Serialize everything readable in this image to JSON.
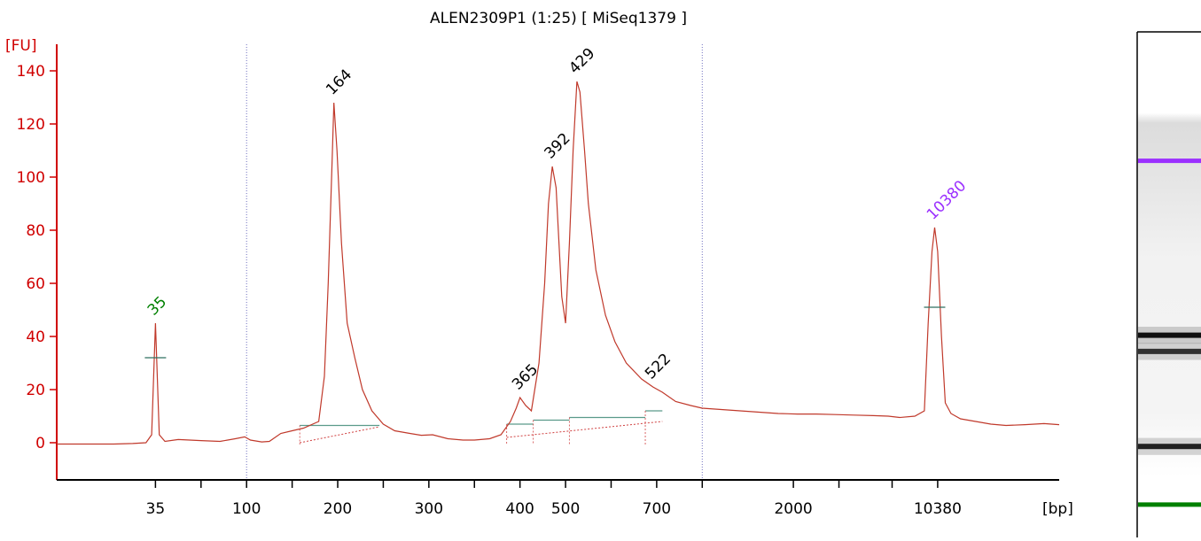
{
  "chart_data": {
    "type": "line",
    "title": "ALEN2309P1 (1:25)  [ MiSeq1379 ]",
    "ylabel": "[FU]",
    "xlabel": "[bp]",
    "ylim": [
      -14,
      150
    ],
    "yticks": [
      0,
      20,
      40,
      60,
      80,
      100,
      120,
      140
    ],
    "xticks": [
      {
        "label": "35",
        "pos": 2.6
      },
      {
        "label": "",
        "pos": 3.8
      },
      {
        "label": "100",
        "pos": 5.0
      },
      {
        "label": "",
        "pos": 6.2
      },
      {
        "label": "200",
        "pos": 7.4
      },
      {
        "label": "",
        "pos": 8.6
      },
      {
        "label": "300",
        "pos": 9.8
      },
      {
        "label": "",
        "pos": 11.0
      },
      {
        "label": "400",
        "pos": 12.2
      },
      {
        "label": "500",
        "pos": 13.4
      },
      {
        "label": "",
        "pos": 14.6
      },
      {
        "label": "700",
        "pos": 15.8
      },
      {
        "label": "",
        "pos": 17.0
      },
      {
        "label": "2000",
        "pos": 19.4
      },
      {
        "label": "",
        "pos": 20.6
      },
      {
        "label": "",
        "pos": 22.0
      },
      {
        "label": "10380",
        "pos": 23.2
      }
    ],
    "xlim": [
      0,
      26.4
    ],
    "vlines": [
      5.0,
      17.0
    ],
    "series": [
      {
        "color": "#c0392b",
        "points": [
          [
            0.0,
            -0.5
          ],
          [
            1.5,
            -0.5
          ],
          [
            2.0,
            -0.3
          ],
          [
            2.35,
            0.0
          ],
          [
            2.5,
            3
          ],
          [
            2.6,
            45
          ],
          [
            2.7,
            3
          ],
          [
            2.85,
            0.5
          ],
          [
            3.2,
            1.2
          ],
          [
            3.8,
            0.8
          ],
          [
            4.3,
            0.5
          ],
          [
            4.7,
            1.5
          ],
          [
            4.95,
            2.2
          ],
          [
            5.1,
            1.0
          ],
          [
            5.4,
            0.3
          ],
          [
            5.6,
            0.5
          ],
          [
            5.9,
            3.5
          ],
          [
            6.2,
            4.5
          ],
          [
            6.5,
            5.5
          ],
          [
            6.9,
            8
          ],
          [
            7.05,
            25
          ],
          [
            7.15,
            60
          ],
          [
            7.25,
            105
          ],
          [
            7.3,
            128
          ],
          [
            7.38,
            110
          ],
          [
            7.5,
            75
          ],
          [
            7.65,
            45
          ],
          [
            7.85,
            32
          ],
          [
            8.05,
            20
          ],
          [
            8.3,
            12
          ],
          [
            8.6,
            7
          ],
          [
            8.9,
            4.5
          ],
          [
            9.3,
            3.5
          ],
          [
            9.6,
            2.8
          ],
          [
            9.9,
            3.0
          ],
          [
            10.3,
            1.5
          ],
          [
            10.7,
            1.0
          ],
          [
            11.0,
            1.0
          ],
          [
            11.4,
            1.5
          ],
          [
            11.7,
            3.0
          ],
          [
            11.95,
            8
          ],
          [
            12.1,
            13
          ],
          [
            12.2,
            17
          ],
          [
            12.35,
            14
          ],
          [
            12.5,
            12
          ],
          [
            12.7,
            30
          ],
          [
            12.85,
            60
          ],
          [
            12.95,
            90
          ],
          [
            13.05,
            104
          ],
          [
            13.15,
            96
          ],
          [
            13.3,
            55
          ],
          [
            13.4,
            45
          ],
          [
            13.5,
            75
          ],
          [
            13.6,
            110
          ],
          [
            13.7,
            136
          ],
          [
            13.78,
            132
          ],
          [
            13.9,
            110
          ],
          [
            14.0,
            90
          ],
          [
            14.2,
            65
          ],
          [
            14.45,
            48
          ],
          [
            14.7,
            38
          ],
          [
            15.0,
            30
          ],
          [
            15.4,
            24
          ],
          [
            15.7,
            21
          ],
          [
            15.95,
            19
          ],
          [
            16.3,
            15.5
          ],
          [
            16.7,
            14
          ],
          [
            17.0,
            13
          ],
          [
            17.5,
            12.5
          ],
          [
            18.0,
            12
          ],
          [
            18.5,
            11.5
          ],
          [
            19.0,
            11
          ],
          [
            19.5,
            10.8
          ],
          [
            20.0,
            10.8
          ],
          [
            20.5,
            10.6
          ],
          [
            21.0,
            10.4
          ],
          [
            21.5,
            10.2
          ],
          [
            21.9,
            10
          ],
          [
            22.2,
            9.5
          ],
          [
            22.6,
            10
          ],
          [
            22.85,
            12
          ],
          [
            22.95,
            45
          ],
          [
            23.05,
            72
          ],
          [
            23.12,
            81
          ],
          [
            23.2,
            72
          ],
          [
            23.3,
            40
          ],
          [
            23.4,
            15
          ],
          [
            23.55,
            11
          ],
          [
            23.8,
            9
          ],
          [
            24.2,
            8
          ],
          [
            24.6,
            7
          ],
          [
            25.0,
            6.5
          ],
          [
            25.5,
            6.8
          ],
          [
            26.0,
            7.2
          ],
          [
            26.4,
            6.8
          ]
        ]
      }
    ],
    "peak_labels": [
      {
        "text": "35",
        "x": 2.6,
        "y": 45,
        "color": "#008000"
      },
      {
        "text": "164",
        "x": 7.3,
        "y": 128,
        "color": "#000000"
      },
      {
        "text": "365",
        "x": 12.2,
        "y": 17,
        "color": "#000000"
      },
      {
        "text": "392",
        "x": 13.05,
        "y": 104,
        "color": "#000000"
      },
      {
        "text": "429",
        "x": 13.7,
        "y": 136,
        "color": "#000000"
      },
      {
        "text": "522",
        "x": 15.7,
        "y": 21,
        "color": "#000000"
      },
      {
        "text": "10380",
        "x": 23.12,
        "y": 81,
        "color": "#9b30ff"
      }
    ],
    "marker_lines": [
      {
        "x": 2.6,
        "y": 32,
        "color": "#2f6f5f"
      },
      {
        "x": 23.12,
        "y": 51,
        "color": "#2f6f5f"
      }
    ],
    "baselines": [
      {
        "x1": 6.4,
        "x2": 8.5,
        "y": 6.5
      },
      {
        "x1": 11.85,
        "x2": 12.55,
        "y": 7
      },
      {
        "x1": 12.55,
        "x2": 13.5,
        "y": 8.5
      },
      {
        "x1": 13.5,
        "x2": 15.5,
        "y": 9.5
      },
      {
        "x1": 15.5,
        "x2": 15.95,
        "y": 12
      }
    ],
    "integration_lines": [
      {
        "x1": 6.4,
        "y1": 0,
        "x2": 8.5,
        "y2": 6
      },
      {
        "x1": 11.85,
        "y1": 2,
        "x2": 15.95,
        "y2": 8
      }
    ],
    "gel": {
      "bands": [
        {
          "y_frac": 0.255,
          "color": "#9b30ff",
          "kind": "marker"
        },
        {
          "y_frac": 0.6,
          "color": "#111111",
          "kind": "dna"
        },
        {
          "y_frac": 0.632,
          "color": "#333333",
          "kind": "dna"
        },
        {
          "y_frac": 0.82,
          "color": "#222222",
          "kind": "dna"
        },
        {
          "y_frac": 0.935,
          "color": "#008000",
          "kind": "marker"
        }
      ]
    }
  }
}
